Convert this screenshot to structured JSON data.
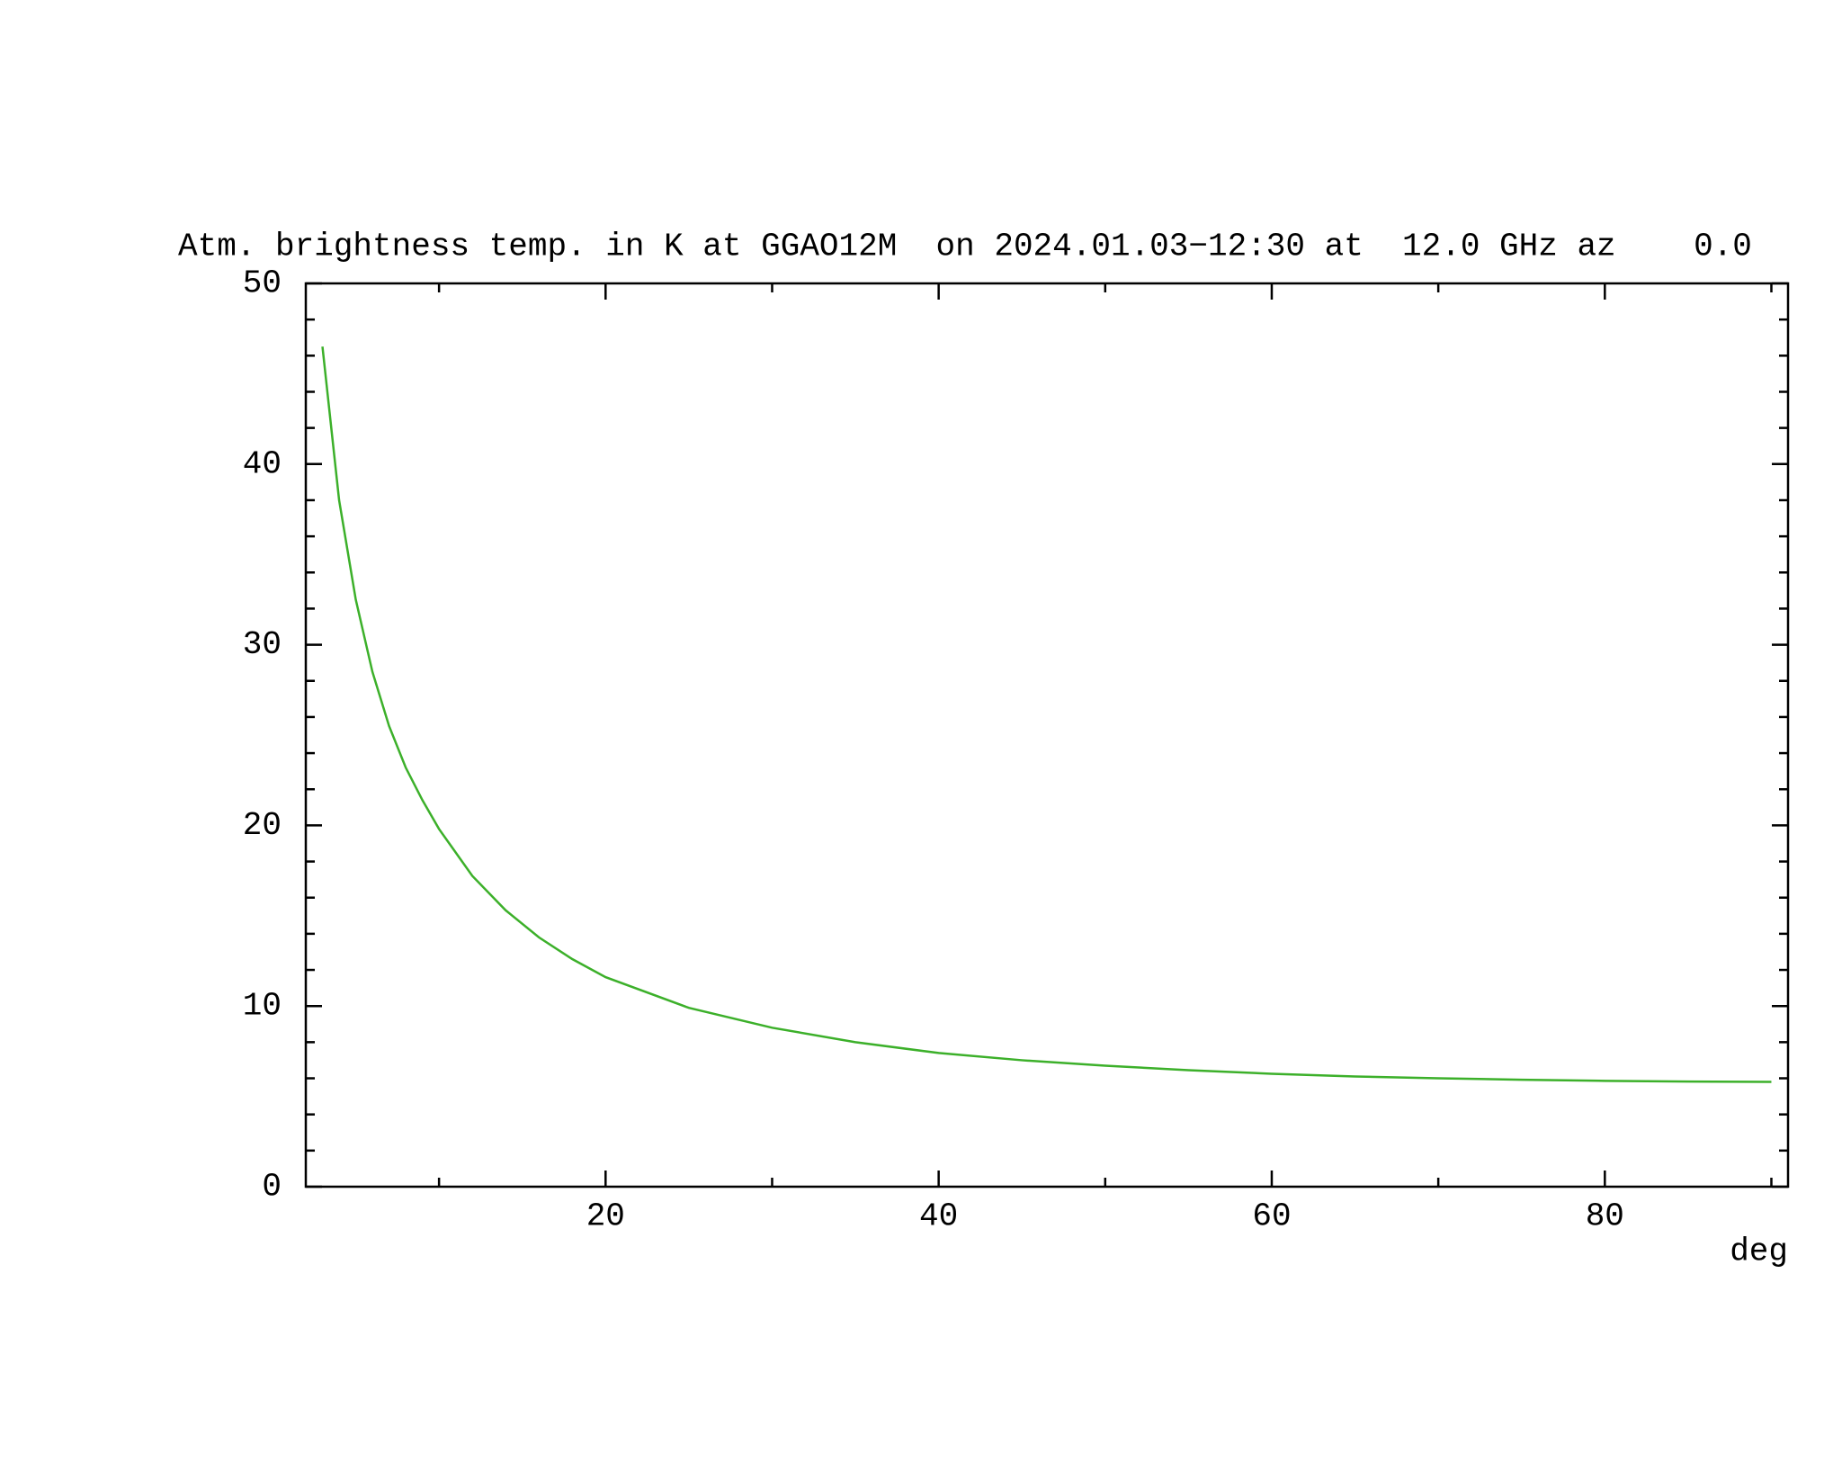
{
  "chart_data": {
    "type": "line",
    "title": "Atm. brightness temp. in K at GGAO12M  on 2024.01.03−12:30 at  12.0 GHz az    0.0",
    "x_label": "deg",
    "x": [
      3,
      4,
      5,
      6,
      7,
      8,
      9,
      10,
      12,
      14,
      16,
      18,
      20,
      25,
      30,
      35,
      40,
      45,
      50,
      55,
      60,
      65,
      70,
      75,
      80,
      85,
      90
    ],
    "series": [
      {
        "color": "#3cb02a",
        "values": [
          46.5,
          38,
          32.5,
          28.5,
          25.5,
          23.2,
          21.4,
          19.8,
          17.2,
          15.3,
          13.8,
          12.6,
          11.6,
          9.9,
          8.8,
          8.0,
          7.4,
          7.0,
          6.7,
          6.45,
          6.25,
          6.1,
          6.0,
          5.92,
          5.86,
          5.82,
          5.8
        ]
      }
    ],
    "xlim": [
      2,
      91
    ],
    "xticks": [
      20,
      40,
      60,
      80
    ],
    "xminorticks": [
      10,
      30,
      50,
      70,
      90
    ],
    "ylim": [
      0,
      50
    ],
    "yticks": [
      0,
      10,
      20,
      30,
      40,
      50
    ],
    "yminorticks": [
      2,
      4,
      6,
      8,
      12,
      14,
      16,
      18,
      22,
      24,
      26,
      28,
      32,
      34,
      36,
      38,
      42,
      44,
      46,
      48
    ]
  }
}
